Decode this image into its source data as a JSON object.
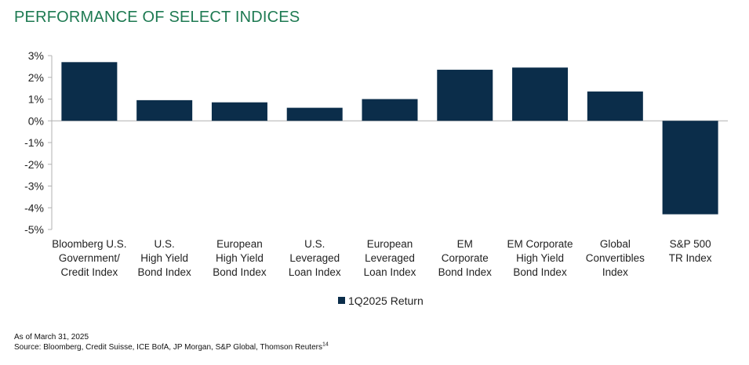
{
  "title": "PERFORMANCE OF SELECT INDICES",
  "footnote": {
    "as_of": "As of March 31, 2025",
    "source": "Source: Bloomberg, Credit Suisse, ICE BofA, JP Morgan, S&P Global, Thomson Reuters",
    "source_ref": "14"
  },
  "colors": {
    "bar": "#0b2d4a",
    "title": "#1e7a52",
    "axis": "#b0b0b0"
  },
  "chart_data": {
    "type": "bar",
    "categories": [
      [
        "Bloomberg U.S.",
        "Government/",
        "Credit Index"
      ],
      [
        "U.S.",
        "High Yield",
        "Bond Index"
      ],
      [
        "European",
        "High Yield",
        "Bond Index"
      ],
      [
        "U.S.",
        "Leveraged",
        "Loan Index"
      ],
      [
        "European",
        "Leveraged",
        "Loan Index"
      ],
      [
        "EM",
        "Corporate",
        "Bond Index"
      ],
      [
        "EM Corporate",
        "High Yield",
        "Bond Index"
      ],
      [
        "Global",
        "Convertibles",
        "Index"
      ],
      [
        "S&P 500",
        "TR Index"
      ]
    ],
    "series": [
      {
        "name": "1Q2025 Return",
        "values": [
          2.7,
          0.95,
          0.85,
          0.6,
          1.0,
          2.35,
          2.45,
          1.35,
          -4.3
        ]
      }
    ],
    "ylim": [
      -5,
      3
    ],
    "yticks": [
      3,
      2,
      1,
      0,
      -1,
      -2,
      -3,
      -4,
      -5
    ],
    "ytick_labels": [
      "3%",
      "2%",
      "1%",
      "0%",
      "-1%",
      "-2%",
      "-3%",
      "-4%",
      "-5%"
    ],
    "legend_position": "bottom",
    "grid": false
  }
}
